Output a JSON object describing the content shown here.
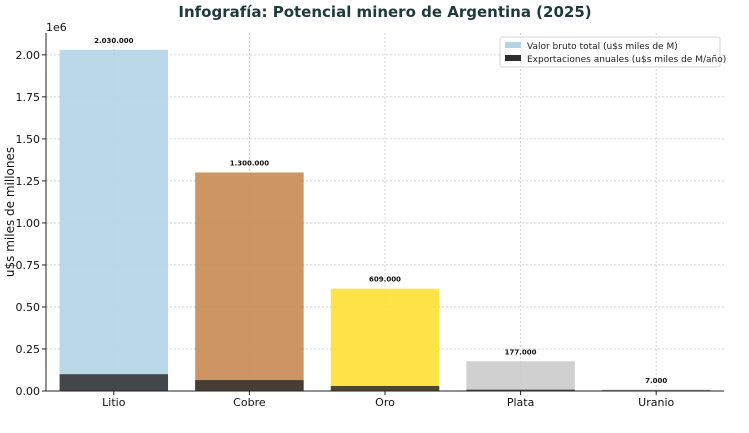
{
  "chart_data": {
    "type": "bar",
    "title": "Infografía: Potencial minero de Argentina (2025)",
    "xlabel": "",
    "ylabel": "u$s miles de millones",
    "y_offset_label": "1e6",
    "categories": [
      "Litio",
      "Cobre",
      "Oro",
      "Plata",
      "Uranio"
    ],
    "series": [
      {
        "name": "Valor bruto total (u$s miles de M)",
        "values": [
          2030000,
          1300000,
          609000,
          177000,
          7000
        ],
        "colors": [
          "#b4d4e6",
          "#c68950",
          "#ffe033",
          "#cbcbcb",
          "#8a8a8a"
        ],
        "data_labels": [
          "2.030.000",
          "1.300.000",
          "609.000",
          "177.000",
          "7.000"
        ]
      },
      {
        "name": "Exportaciones anuales (u$s miles de M/año)",
        "values": [
          100000,
          65000,
          30000,
          8000,
          1000
        ],
        "color": "#2e2e2e"
      }
    ],
    "ylim": [
      0,
      2130000
    ],
    "yticks": [
      0,
      250000,
      500000,
      750000,
      1000000,
      1250000,
      1500000,
      1750000,
      2000000
    ],
    "ytick_labels": [
      "0.00",
      "0.25",
      "0.50",
      "0.75",
      "1.00",
      "1.25",
      "1.50",
      "1.75",
      "2.00"
    ],
    "grid": true,
    "legend_position": "top-right"
  }
}
